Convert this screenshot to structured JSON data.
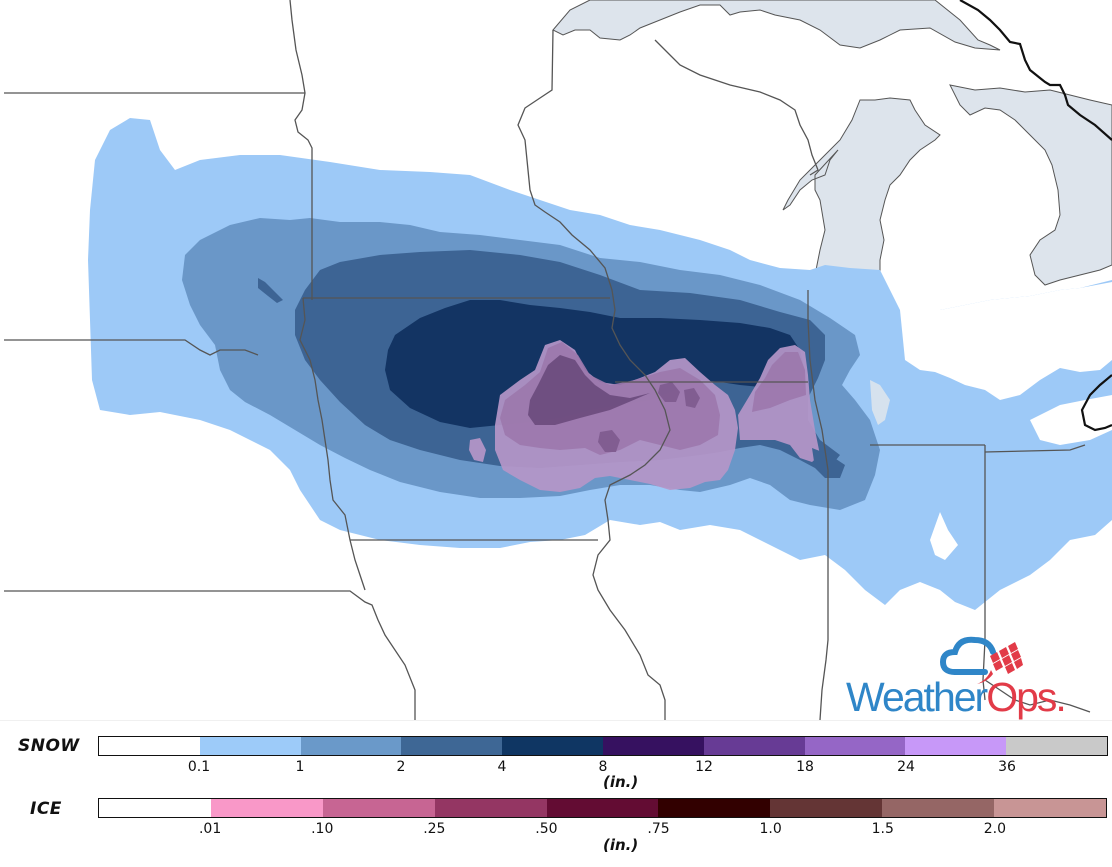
{
  "map": {
    "region": "Upper Midwest / Great Lakes",
    "colors": {
      "land": "#ffffff",
      "water": "#dde4ec",
      "border": "#555555",
      "country_border": "#111111",
      "snow_0_1": "#9dc9f7",
      "snow_1": "#6a97c8",
      "snow_2": "#3d6494",
      "snow_4": "#133463",
      "ice_light": "#b596c8",
      "ice_mid": "#9c78ac",
      "ice_dark": "#6a4a7c"
    }
  },
  "logo": {
    "brand_part1": "Weather",
    "brand_part2": "Ops",
    "brand_suffix": ".",
    "primary_color": "#2f86c8",
    "accent_color": "#e23b48"
  },
  "legend": {
    "snow": {
      "title": "SNOW",
      "unit": "(in.)",
      "segments": [
        {
          "color": "#ffffff"
        },
        {
          "color": "#9dcbf9"
        },
        {
          "color": "#6a99c9"
        },
        {
          "color": "#3e6795"
        },
        {
          "color": "#0f3663"
        },
        {
          "color": "#361160"
        },
        {
          "color": "#673b95"
        },
        {
          "color": "#9566c6"
        },
        {
          "color": "#c798f8"
        },
        {
          "color": "#c9c9c9"
        }
      ],
      "ticks": [
        "0.1",
        "1",
        "2",
        "4",
        "8",
        "12",
        "18",
        "24",
        "36"
      ]
    },
    "ice": {
      "title": "ICE",
      "unit": "(in.)",
      "segments": [
        {
          "color": "#ffffff"
        },
        {
          "color": "#f998c8"
        },
        {
          "color": "#c76593"
        },
        {
          "color": "#943663"
        },
        {
          "color": "#630c33"
        },
        {
          "color": "#320000"
        },
        {
          "color": "#643535"
        },
        {
          "color": "#956665"
        },
        {
          "color": "#c89595"
        }
      ],
      "ticks": [
        ".01",
        ".10",
        ".25",
        ".50",
        ".75",
        "1.0",
        "1.5",
        "2.0"
      ]
    }
  }
}
